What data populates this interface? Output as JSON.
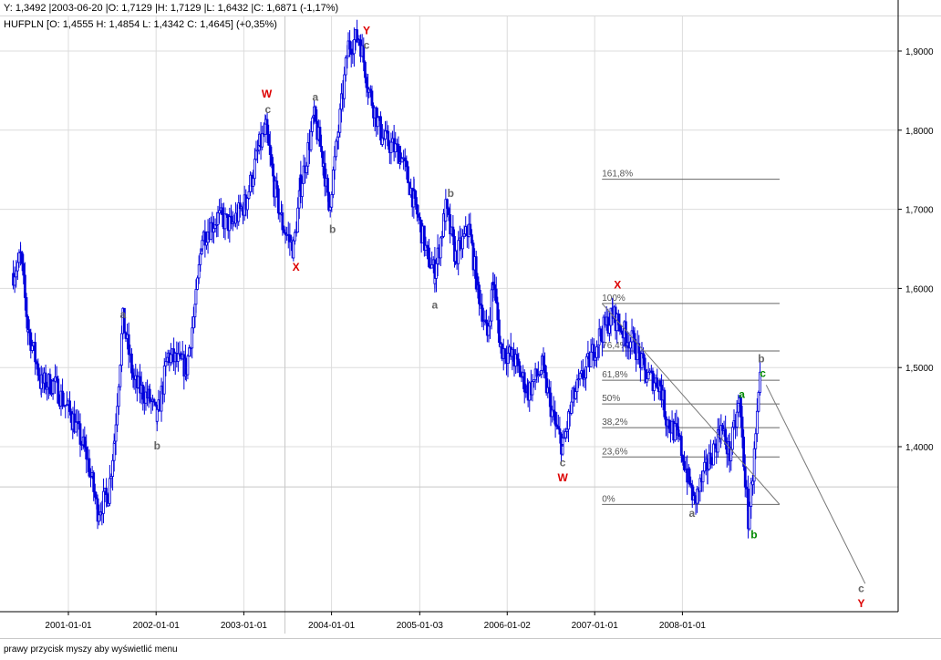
{
  "crosshair": {
    "readout": "Y: 1,3492 |2003-06-20 |O: 1,7129 |H: 1,7129 |L: 1,6432 |C: 1,6871 (-1,17%)",
    "date": "2003-06-20",
    "price": 1.3492
  },
  "legend": "HUFPLN [O: 1,4555  H: 1,4854  L: 1,4342  C: 1,4645] (+0,35%)",
  "status_bar": "prawy przycisk myszy aby wyświetlić menu",
  "chart_data": {
    "type": "candlestick",
    "symbol": "HUFPLN",
    "grid": true,
    "series_color": "#0000dd",
    "y_axis_position": "right",
    "ylim": [
      1.23,
      1.96
    ],
    "y_ticks": [
      "1,4000",
      "1,5000",
      "1,6000",
      "1,7000",
      "1,8000",
      "1,9000"
    ],
    "y_tick_values": [
      1.4,
      1.5,
      1.6,
      1.7,
      1.8,
      1.9
    ],
    "x_ticks": [
      "2001-01-01",
      "2002-01-01",
      "2003-01-01",
      "2004-01-01",
      "2005-01-03",
      "2006-01-02",
      "2007-01-01",
      "2008-01-01"
    ],
    "approx_price_path": [
      [
        "2000-05-15",
        1.619
      ],
      [
        "2000-06-15",
        1.64
      ],
      [
        "2000-07-15",
        1.55
      ],
      [
        "2000-09-10",
        1.48
      ],
      [
        "2000-11-01",
        1.48
      ],
      [
        "2001-01-20",
        1.435
      ],
      [
        "2001-03-15",
        1.39
      ],
      [
        "2001-05-01",
        1.32
      ],
      [
        "2001-06-15",
        1.34
      ],
      [
        "2001-07-10",
        1.41
      ],
      [
        "2001-08-15",
        1.56
      ],
      [
        "2001-10-01",
        1.48
      ],
      [
        "2001-12-05",
        1.46
      ],
      [
        "2002-01-05",
        1.435
      ],
      [
        "2002-02-20",
        1.515
      ],
      [
        "2002-05-05",
        1.5
      ],
      [
        "2002-06-15",
        1.585
      ],
      [
        "2002-07-10",
        1.665
      ],
      [
        "2002-09-15",
        1.69
      ],
      [
        "2002-11-10",
        1.68
      ],
      [
        "2003-01-10",
        1.71
      ],
      [
        "2003-03-05",
        1.78
      ],
      [
        "2003-04-01",
        1.8
      ],
      [
        "2003-05-05",
        1.73
      ],
      [
        "2003-06-10",
        1.68
      ],
      [
        "2003-07-25",
        1.65
      ],
      [
        "2003-08-25",
        1.73
      ],
      [
        "2003-10-20",
        1.815
      ],
      [
        "2003-11-28",
        1.76
      ],
      [
        "2003-12-20",
        1.7
      ],
      [
        "2004-01-30",
        1.8
      ],
      [
        "2004-03-10",
        1.907
      ],
      [
        "2004-04-25",
        1.918
      ],
      [
        "2004-06-05",
        1.85
      ],
      [
        "2004-07-30",
        1.79
      ],
      [
        "2004-10-15",
        1.77
      ],
      [
        "2004-12-10",
        1.71
      ],
      [
        "2005-02-05",
        1.64
      ],
      [
        "2005-03-05",
        1.62
      ],
      [
        "2005-04-20",
        1.7
      ],
      [
        "2005-05-30",
        1.64
      ],
      [
        "2005-07-25",
        1.675
      ],
      [
        "2005-09-01",
        1.6
      ],
      [
        "2005-10-10",
        1.54
      ],
      [
        "2005-11-05",
        1.61
      ],
      [
        "2005-12-05",
        1.525
      ],
      [
        "2006-02-01",
        1.51
      ],
      [
        "2006-03-28",
        1.47
      ],
      [
        "2006-05-25",
        1.5
      ],
      [
        "2006-07-20",
        1.425
      ],
      [
        "2006-08-20",
        1.4
      ],
      [
        "2006-10-01",
        1.46
      ],
      [
        "2006-11-28",
        1.5
      ],
      [
        "2007-01-20",
        1.54
      ],
      [
        "2007-03-15",
        1.567
      ],
      [
        "2007-05-10",
        1.54
      ],
      [
        "2007-06-15",
        1.53
      ],
      [
        "2007-07-30",
        1.49
      ],
      [
        "2007-09-30",
        1.48
      ],
      [
        "2007-10-25",
        1.435
      ],
      [
        "2007-12-15",
        1.41
      ],
      [
        "2008-01-30",
        1.354
      ],
      [
        "2008-02-20",
        1.33
      ],
      [
        "2008-04-15",
        1.377
      ],
      [
        "2008-06-10",
        1.423
      ],
      [
        "2008-07-15",
        1.39
      ],
      [
        "2008-08-25",
        1.457
      ],
      [
        "2008-10-01",
        1.308
      ],
      [
        "2008-10-20",
        1.365
      ],
      [
        "2008-11-20",
        1.48
      ]
    ],
    "fibonacci": {
      "from_date": "2007-02-01",
      "to_date": "2009-02-10",
      "levels": [
        {
          "label": "161,8%",
          "price": 1.738
        },
        {
          "label": "100%",
          "price": 1.581
        },
        {
          "label": "76,4%",
          "price": 1.521
        },
        {
          "label": "61,8%",
          "price": 1.484
        },
        {
          "label": "50%",
          "price": 1.454
        },
        {
          "label": "38,2%",
          "price": 1.424
        },
        {
          "label": "23,6%",
          "price": 1.387
        },
        {
          "label": "0%",
          "price": 1.327
        }
      ]
    },
    "trend_lines": [
      {
        "from": [
          "2007-02-01",
          1.581
        ],
        "to": [
          "2009-02-10",
          1.327
        ]
      },
      {
        "from": [
          "2008-12-15",
          1.478
        ],
        "to": [
          "2010-02-01",
          1.227
        ]
      }
    ],
    "wave_labels": [
      {
        "text": "a",
        "color": "#666666",
        "date": "2001-08-15",
        "price": 1.567
      },
      {
        "text": "b",
        "color": "#666666",
        "date": "2002-01-05",
        "price": 1.401
      },
      {
        "text": "W",
        "color": "#dd0000",
        "date": "2003-04-05",
        "price": 1.846
      },
      {
        "text": "c",
        "color": "#666666",
        "date": "2003-04-10",
        "price": 1.83
      },
      {
        "text": "X",
        "color": "#dd0000",
        "date": "2003-08-05",
        "price": 1.627
      },
      {
        "text": "a",
        "color": "#666666",
        "date": "2003-10-25",
        "price": 1.842
      },
      {
        "text": "b",
        "color": "#666666",
        "date": "2004-01-05",
        "price": 1.675
      },
      {
        "text": "Y",
        "color": "#dd0000",
        "date": "2004-05-25",
        "price": 1.926
      },
      {
        "text": "c",
        "color": "#666666",
        "date": "2004-05-25",
        "price": 1.912
      },
      {
        "text": "b",
        "color": "#666666",
        "date": "2005-05-10",
        "price": 1.72
      },
      {
        "text": "a",
        "color": "#666666",
        "date": "2005-03-05",
        "price": 1.579
      },
      {
        "text": "c",
        "color": "#666666",
        "date": "2006-08-20",
        "price": 1.38
      },
      {
        "text": "W",
        "color": "#dd0000",
        "date": "2006-08-20",
        "price": 1.361
      },
      {
        "text": "X",
        "color": "#dd0000",
        "date": "2007-04-05",
        "price": 1.594
      },
      {
        "text": "a",
        "color": "#666666",
        "date": "2008-02-10",
        "price": 1.316
      },
      {
        "text": "a",
        "color": "#008800",
        "date": "2008-09-05",
        "price": 1.466
      },
      {
        "text": "b",
        "color": "#666666",
        "date": "2008-11-25",
        "price": 1.511
      },
      {
        "text": "c",
        "color": "#008800",
        "date": "2008-12-01",
        "price": 1.496
      },
      {
        "text": "b",
        "color": "#008800",
        "date": "2008-10-25",
        "price": 1.289
      },
      {
        "text": "c",
        "color": "#666666",
        "date": "2010-01-15",
        "price": 1.221
      },
      {
        "text": "Y",
        "color": "#dd0000",
        "date": "2010-01-15",
        "price": 1.202
      }
    ]
  }
}
